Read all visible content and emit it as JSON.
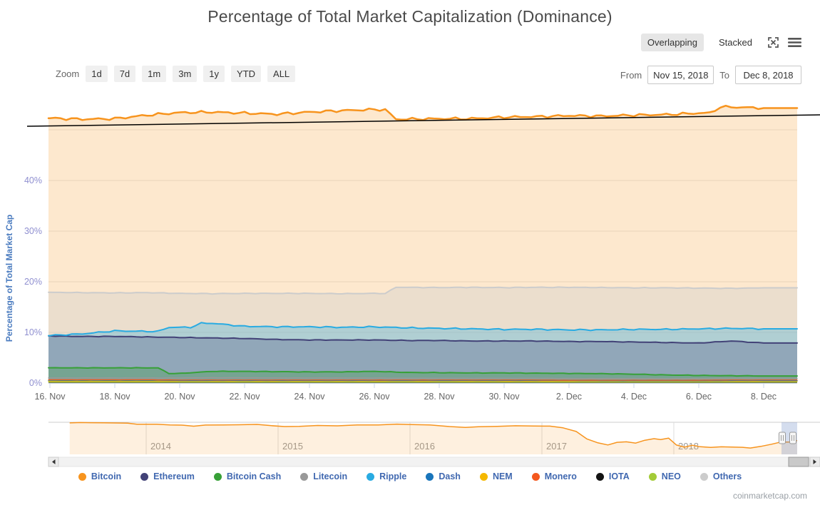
{
  "title": "Percentage of Total Market Capitalization (Dominance)",
  "controls": {
    "overlapping_label": "Overlapping",
    "stacked_label": "Stacked",
    "zoom_label": "Zoom",
    "zoom_buttons": [
      "1d",
      "7d",
      "1m",
      "3m",
      "1y",
      "YTD",
      "ALL"
    ],
    "from_label": "From",
    "from_value": "Nov 15, 2018",
    "to_label": "To",
    "to_value": "Dec 8, 2018"
  },
  "watermark": "coinmarketcap.com",
  "chart_data": {
    "type": "area",
    "title": "Percentage of Total Market Capitalization (Dominance)",
    "ylabel": "Percentage of Total Market Cap",
    "ylim": [
      0,
      56
    ],
    "yticklabels": [
      "0%",
      "10%",
      "20%",
      "30%",
      "40%"
    ],
    "ytick_values": [
      0,
      10,
      20,
      30,
      40
    ],
    "xticklabels": [
      "16. Nov",
      "18. Nov",
      "20. Nov",
      "22. Nov",
      "24. Nov",
      "26. Nov",
      "28. Nov",
      "30. Nov",
      "2. Dec",
      "4. Dec",
      "6. Dec",
      "8. Dec"
    ],
    "dates": [
      "Nov 15",
      "Nov 16",
      "Nov 17",
      "Nov 18",
      "Nov 19",
      "Nov 20",
      "Nov 21",
      "Nov 22",
      "Nov 23",
      "Nov 24",
      "Nov 25",
      "Nov 26",
      "Nov 27",
      "Nov 28",
      "Nov 29",
      "Nov 30",
      "Dec 1",
      "Dec 2",
      "Dec 3",
      "Dec 4",
      "Dec 5",
      "Dec 6",
      "Dec 7",
      "Dec 8"
    ],
    "unit": "percent of total market cap",
    "series": [
      {
        "name": "Bitcoin",
        "color": "#F7941E",
        "fillOpacity": 0.22,
        "width": 2.5,
        "wiggle": 0.28,
        "values": [
          52.2,
          52.3,
          52.1,
          52.2,
          52.9,
          53.4,
          53.5,
          53.3,
          53.1,
          53.5,
          53.8,
          54.0,
          52.1,
          52.2,
          52.2,
          52.5,
          52.6,
          52.8,
          52.7,
          52.9,
          53.0,
          53.3,
          54.5,
          54.3
        ]
      },
      {
        "name": "Ethereum",
        "color": "#424277",
        "fillOpacity": 0.28,
        "width": 2,
        "wiggle": 0.06,
        "values": [
          9.3,
          9.3,
          9.2,
          9.2,
          9.1,
          9.0,
          8.9,
          8.8,
          8.6,
          8.5,
          8.5,
          8.5,
          8.4,
          8.4,
          8.3,
          8.3,
          8.3,
          8.2,
          8.2,
          8.1,
          8.0,
          7.9,
          8.3,
          7.9
        ]
      },
      {
        "name": "Bitcoin Cash",
        "color": "#37A037",
        "fillOpacity": 0.3,
        "width": 2,
        "wiggle": 0.05,
        "values": [
          3.0,
          3.0,
          3.0,
          3.0,
          3.0,
          1.9,
          2.3,
          2.3,
          2.25,
          2.2,
          2.2,
          2.3,
          2.1,
          2.05,
          2.0,
          2.0,
          1.95,
          1.9,
          1.85,
          1.75,
          1.6,
          1.5,
          1.45,
          1.4
        ]
      },
      {
        "name": "Litecoin",
        "color": "#999999",
        "fillOpacity": 0.3,
        "width": 1.5,
        "wiggle": 0.02,
        "values": [
          1.0,
          1.0,
          1.0,
          1.0,
          1.0,
          1.0,
          1.05,
          1.05,
          1.0,
          1.0,
          1.0,
          1.0,
          0.95,
          0.95,
          0.95,
          0.95,
          0.95,
          0.9,
          0.9,
          0.9,
          0.9,
          0.9,
          0.95,
          0.95
        ]
      },
      {
        "name": "Ripple",
        "color": "#29ABE2",
        "fillOpacity": 0.3,
        "width": 2,
        "wiggle": 0.14,
        "values": [
          9.3,
          9.4,
          9.7,
          10.3,
          10.2,
          11.0,
          11.8,
          11.2,
          11.1,
          11.1,
          11.0,
          11.1,
          10.9,
          10.8,
          10.7,
          10.6,
          10.6,
          10.5,
          10.5,
          10.6,
          10.6,
          10.7,
          10.8,
          10.7
        ]
      },
      {
        "name": "Dash",
        "color": "#1975BB",
        "fillOpacity": 0.3,
        "width": 1.2,
        "wiggle": 0.01,
        "values": [
          0.55,
          0.55,
          0.55,
          0.55,
          0.55,
          0.5,
          0.5,
          0.5,
          0.5,
          0.5,
          0.5,
          0.5,
          0.5,
          0.5,
          0.5,
          0.5,
          0.5,
          0.5,
          0.45,
          0.45,
          0.45,
          0.45,
          0.5,
          0.5
        ]
      },
      {
        "name": "NEM",
        "color": "#F5B800",
        "fillOpacity": 0.3,
        "width": 1.2,
        "wiggle": 0.01,
        "values": [
          0.4,
          0.4,
          0.4,
          0.4,
          0.4,
          0.4,
          0.4,
          0.4,
          0.4,
          0.4,
          0.4,
          0.4,
          0.4,
          0.4,
          0.4,
          0.38,
          0.38,
          0.38,
          0.38,
          0.38,
          0.38,
          0.38,
          0.4,
          0.4
        ]
      },
      {
        "name": "Monero",
        "color": "#F4581E",
        "fillOpacity": 0.3,
        "width": 1.2,
        "wiggle": 0.015,
        "values": [
          0.65,
          0.65,
          0.65,
          0.65,
          0.65,
          0.6,
          0.6,
          0.6,
          0.6,
          0.6,
          0.6,
          0.6,
          0.6,
          0.6,
          0.6,
          0.6,
          0.6,
          0.55,
          0.55,
          0.55,
          0.55,
          0.55,
          0.6,
          0.6
        ]
      },
      {
        "name": "IOTA",
        "color": "#131313",
        "fillOpacity": 0.25,
        "width": 1.2,
        "wiggle": 0.01,
        "values": [
          0.45,
          0.45,
          0.45,
          0.45,
          0.45,
          0.45,
          0.45,
          0.45,
          0.45,
          0.45,
          0.45,
          0.45,
          0.45,
          0.45,
          0.45,
          0.45,
          0.45,
          0.45,
          0.45,
          0.45,
          0.45,
          0.45,
          0.45,
          0.45
        ]
      },
      {
        "name": "NEO",
        "color": "#A3CB38",
        "fillOpacity": 0.3,
        "width": 1.2,
        "wiggle": 0.01,
        "values": [
          0.3,
          0.3,
          0.3,
          0.3,
          0.3,
          0.3,
          0.3,
          0.3,
          0.3,
          0.3,
          0.3,
          0.3,
          0.3,
          0.3,
          0.3,
          0.3,
          0.3,
          0.3,
          0.3,
          0.3,
          0.3,
          0.3,
          0.32,
          0.32
        ]
      },
      {
        "name": "Others",
        "color": "#CCCCCC",
        "fillOpacity": 0.38,
        "width": 2,
        "wiggle": 0.07,
        "values": [
          17.9,
          17.9,
          17.85,
          17.8,
          17.85,
          17.7,
          17.65,
          17.7,
          17.7,
          17.7,
          17.65,
          17.7,
          18.9,
          18.85,
          18.9,
          18.85,
          18.9,
          18.9,
          18.85,
          18.8,
          18.8,
          18.75,
          18.7,
          18.8
        ]
      }
    ],
    "trendline": {
      "color": "#000000",
      "x1": 38,
      "y1": 177,
      "x2": 1150,
      "y2": 161
    },
    "navigator": {
      "series_name": "Bitcoin",
      "year_labels": [
        "2014",
        "2015",
        "2016",
        "2017",
        "2018"
      ],
      "selected_range": "Nov 15, 2018 - Dec 8, 2018",
      "points": [
        [
          2013.42,
          94.5
        ],
        [
          2013.5,
          95.5
        ],
        [
          2013.58,
          94.6
        ],
        [
          2013.68,
          95.0
        ],
        [
          2013.78,
          93.8
        ],
        [
          2013.86,
          94.5
        ],
        [
          2013.93,
          90.5
        ],
        [
          2014.0,
          92.0
        ],
        [
          2014.08,
          90.5
        ],
        [
          2014.18,
          90.0
        ],
        [
          2014.28,
          88.5
        ],
        [
          2014.36,
          86.8
        ],
        [
          2014.45,
          89.0
        ],
        [
          2014.58,
          89.5
        ],
        [
          2014.7,
          90.0
        ],
        [
          2014.84,
          90.5
        ],
        [
          2014.95,
          88.0
        ],
        [
          2015.05,
          85.0
        ],
        [
          2015.16,
          86.5
        ],
        [
          2015.3,
          87.5
        ],
        [
          2015.45,
          88.0
        ],
        [
          2015.6,
          89.0
        ],
        [
          2015.76,
          90.0
        ],
        [
          2015.9,
          91.0
        ],
        [
          2016.02,
          90.5
        ],
        [
          2016.15,
          89.5
        ],
        [
          2016.3,
          85.5
        ],
        [
          2016.42,
          83.5
        ],
        [
          2016.52,
          85.0
        ],
        [
          2016.66,
          86.5
        ],
        [
          2016.8,
          87.0
        ],
        [
          2016.94,
          87.5
        ],
        [
          2017.06,
          86.0
        ],
        [
          2017.16,
          83.0
        ],
        [
          2017.26,
          73.0
        ],
        [
          2017.34,
          56.0
        ],
        [
          2017.42,
          46.0
        ],
        [
          2017.5,
          41.0
        ],
        [
          2017.57,
          47.0
        ],
        [
          2017.64,
          48.5
        ],
        [
          2017.71,
          45.5
        ],
        [
          2017.78,
          52.0
        ],
        [
          2017.85,
          56.5
        ],
        [
          2017.9,
          53.5
        ],
        [
          2017.96,
          58.0
        ],
        [
          2018.02,
          40.0
        ],
        [
          2018.08,
          36.0
        ],
        [
          2018.14,
          39.5
        ],
        [
          2018.2,
          37.0
        ],
        [
          2018.28,
          34.5
        ],
        [
          2018.36,
          36.5
        ],
        [
          2018.44,
          35.5
        ],
        [
          2018.52,
          35.0
        ],
        [
          2018.58,
          33.5
        ],
        [
          2018.66,
          37.0
        ],
        [
          2018.74,
          43.0
        ],
        [
          2018.8,
          46.5
        ],
        [
          2018.85,
          48.5
        ],
        [
          2018.88,
          47.5
        ],
        [
          2018.92,
          51.5
        ],
        [
          2018.95,
          51.0
        ]
      ]
    },
    "colors": {
      "axis_line": "#ccd6eb",
      "grid": "#e6e6e6",
      "ytick_label": "#8f8fd0",
      "xtick_label": "#666666",
      "yaxis_title": "#4a7bbf",
      "year_label": "#999999",
      "nav_mask": "rgba(102,133,194,0.28)"
    }
  }
}
